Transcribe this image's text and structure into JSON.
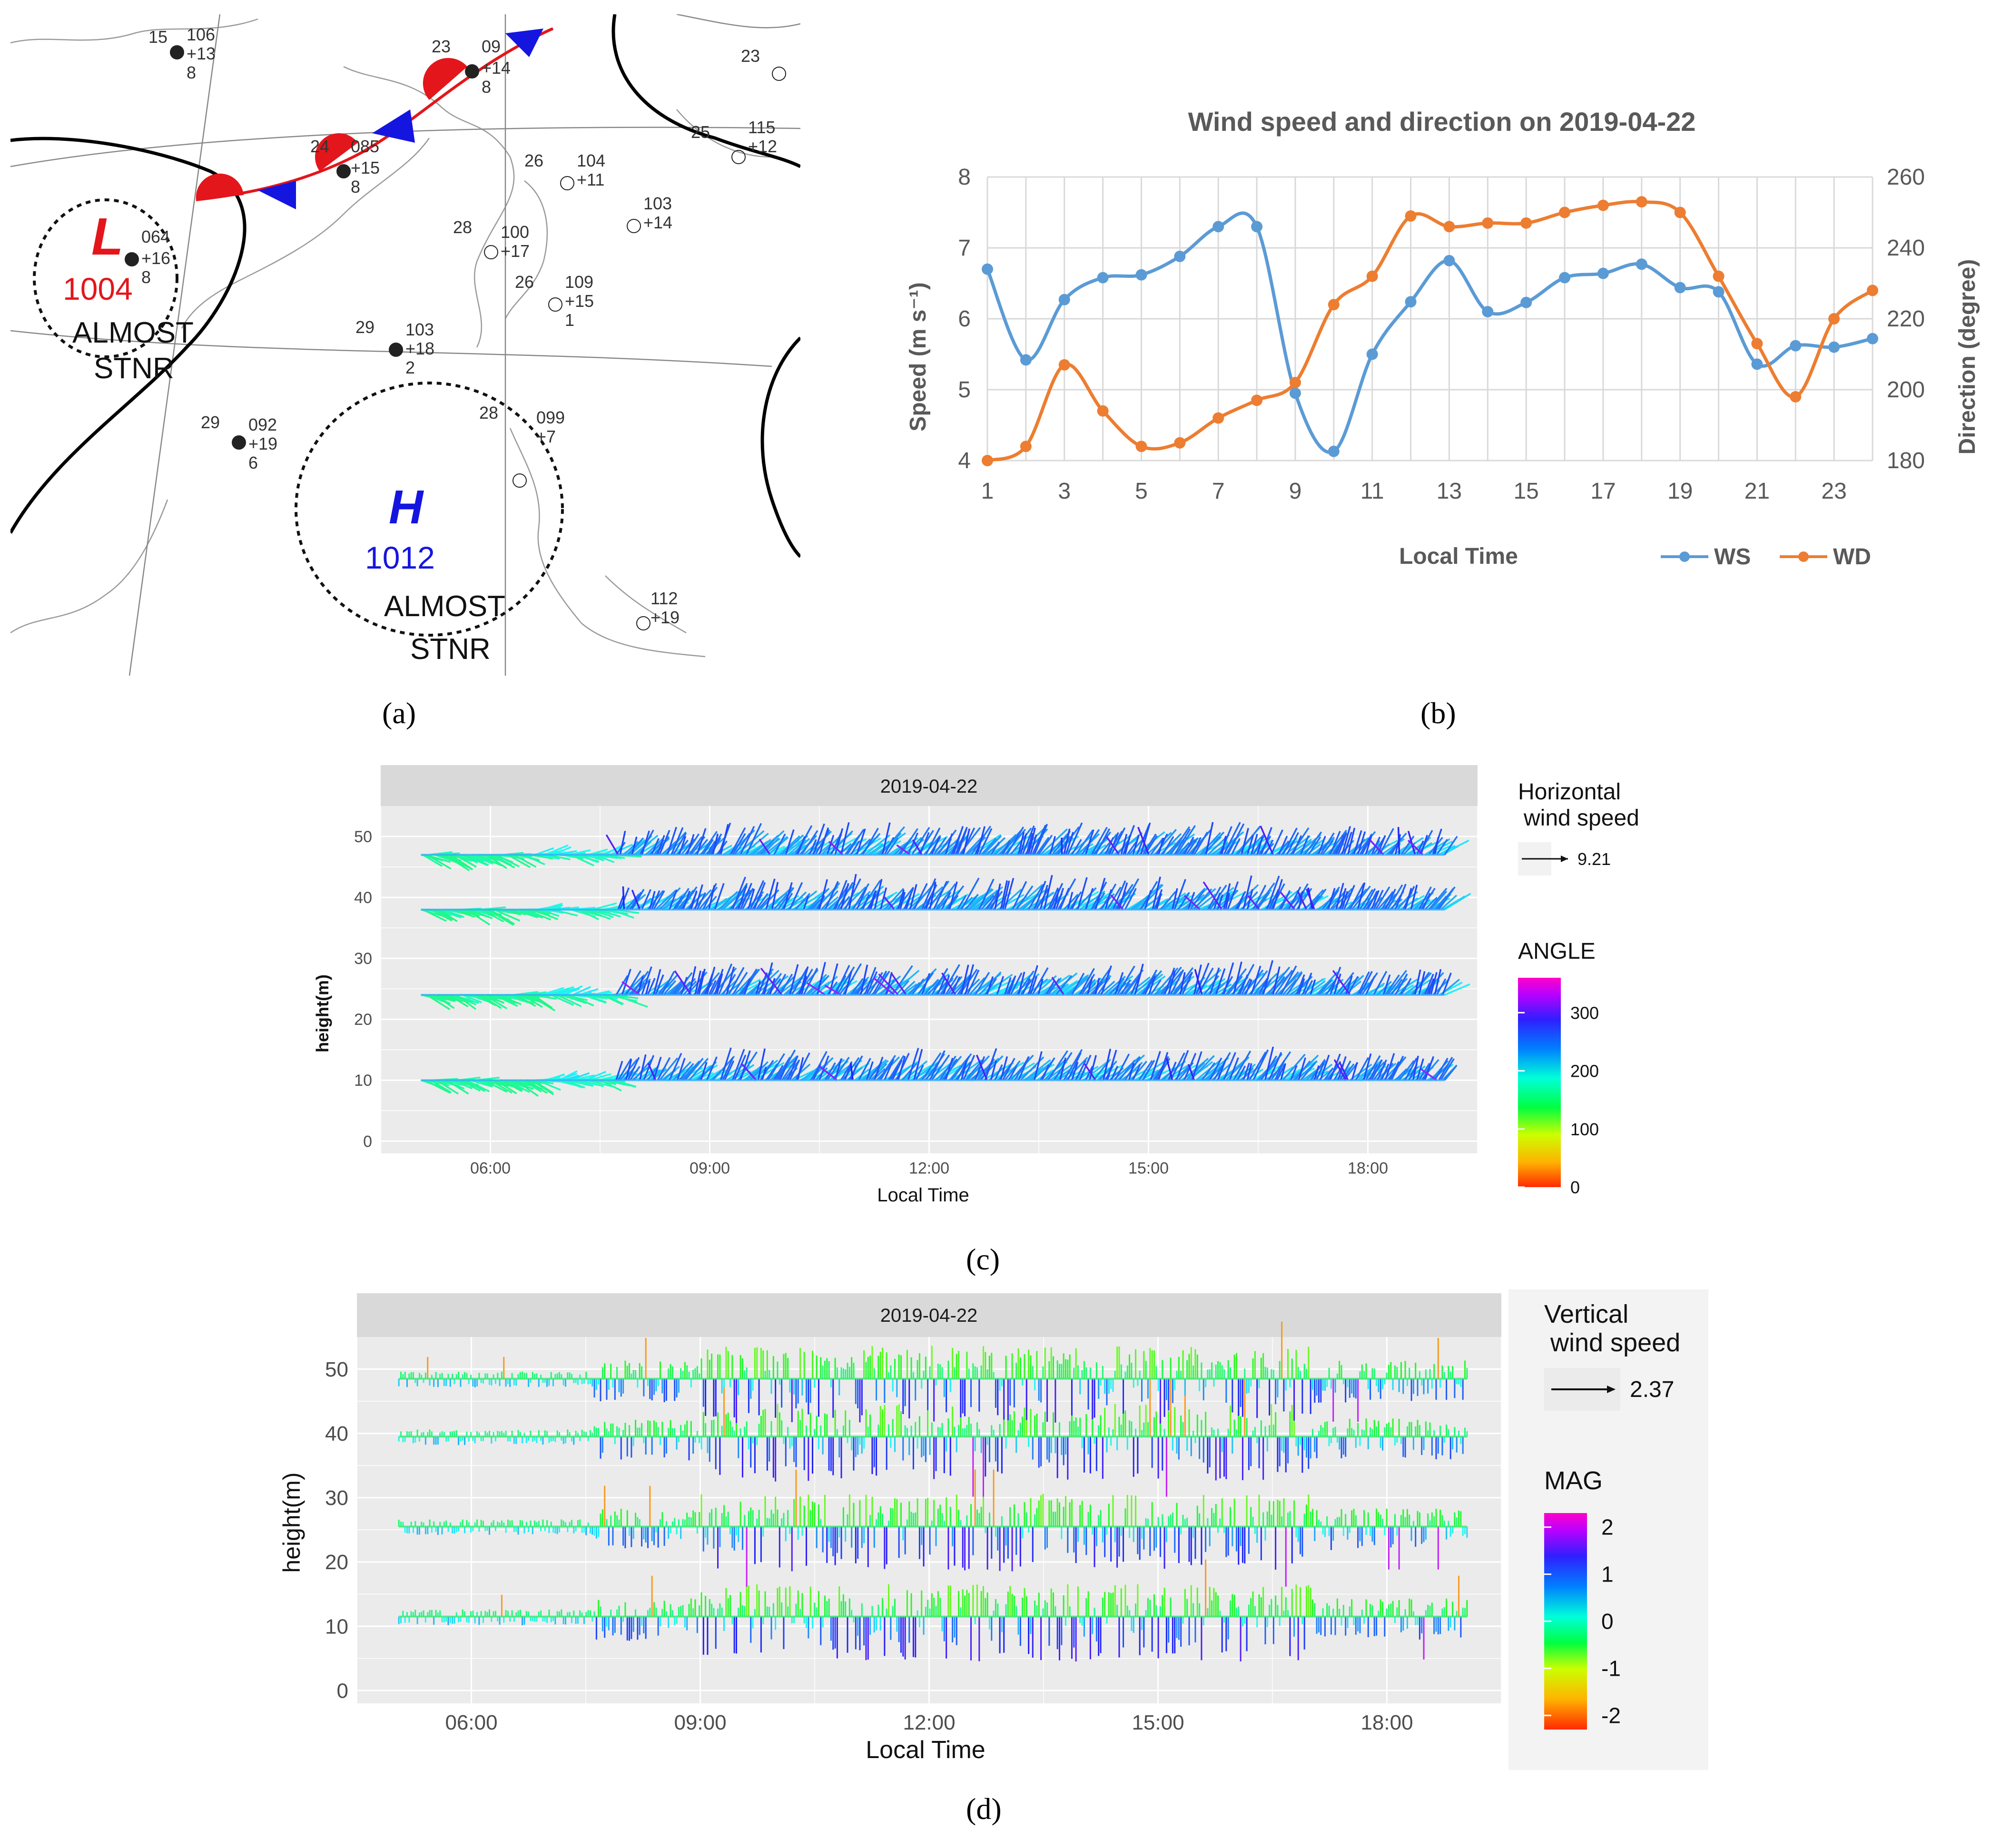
{
  "labels": {
    "a": "(a)",
    "b": "(b)",
    "c": "(c)",
    "d": "(d)"
  },
  "map": {
    "low": {
      "letter": "L",
      "pressure": "1004",
      "status": [
        "ALMOST",
        "STNR"
      ],
      "color": "#e3161b"
    },
    "high": {
      "letter": "H",
      "pressure": "1012",
      "status": [
        "ALMOST",
        "STNR"
      ],
      "color": "#1515e0"
    },
    "stations": [
      {
        "t": "15",
        "p": "106",
        "d": "+13",
        "n": "8"
      },
      {
        "t": "23",
        "p": "09",
        "d": "+14",
        "n": "8"
      },
      {
        "t": "24",
        "p": "085",
        "d": "+15",
        "n": "8"
      },
      {
        "t": "",
        "p": "064",
        "d": "+16",
        "n": "8"
      },
      {
        "t": "26",
        "p": "104",
        "d": "+11",
        "n": ""
      },
      {
        "t": "28",
        "p": "100",
        "d": "+17",
        "n": ""
      },
      {
        "t": "",
        "p": "103",
        "d": "+14",
        "n": ""
      },
      {
        "t": "25",
        "p": "115",
        "d": "+12",
        "n": ""
      },
      {
        "t": "23",
        "p": "",
        "d": "",
        "n": ""
      },
      {
        "t": "26",
        "p": "109",
        "d": "+15",
        "n": "1"
      },
      {
        "t": "29",
        "p": "103",
        "d": "+18",
        "n": "2"
      },
      {
        "t": "29",
        "p": "092",
        "d": "+19",
        "n": "6"
      },
      {
        "t": "28",
        "p": "099",
        "d": "+7",
        "n": ""
      },
      {
        "t": "",
        "p": "112",
        "d": "+19",
        "n": ""
      }
    ]
  },
  "chart_data": [
    {
      "type": "line",
      "title": "Wind speed and direction on 2019-04-22",
      "xlabel": "Local Time",
      "ylabel": "Speed (m s⁻¹)",
      "ylabel2": "Direction (degree)",
      "x": [
        1,
        2,
        3,
        4,
        5,
        6,
        7,
        8,
        9,
        10,
        11,
        12,
        13,
        14,
        15,
        16,
        17,
        18,
        19,
        20,
        21,
        22,
        23,
        24
      ],
      "xticks": [
        "1",
        "3",
        "5",
        "7",
        "9",
        "11",
        "13",
        "15",
        "17",
        "19",
        "21",
        "23"
      ],
      "ylim": [
        4,
        8
      ],
      "yticks": [
        "4",
        "5",
        "6",
        "7",
        "8"
      ],
      "y2lim": [
        180,
        260
      ],
      "y2ticks": [
        "180",
        "200",
        "220",
        "240",
        "260"
      ],
      "series": [
        {
          "name": "WS",
          "axis": "left",
          "color": "#5b9bd5",
          "values": [
            6.7,
            5.42,
            6.27,
            6.58,
            6.62,
            6.88,
            7.3,
            7.3,
            4.95,
            4.13,
            5.5,
            6.24,
            6.82,
            6.1,
            6.23,
            6.58,
            6.64,
            6.77,
            6.44,
            6.38,
            5.36,
            5.62,
            5.6,
            5.72
          ]
        },
        {
          "name": "WD",
          "axis": "right",
          "color": "#ed7d31",
          "values": [
            180,
            184,
            207,
            194,
            184,
            185,
            192,
            197,
            202,
            224,
            232,
            249,
            246,
            247,
            247,
            250,
            252,
            253,
            250,
            232,
            213,
            198,
            220,
            228
          ]
        }
      ],
      "legend": [
        "WS",
        "WD"
      ]
    },
    {
      "type": "quiver",
      "title": "2019-04-22",
      "xlabel": "Local Time",
      "ylabel": "height(m)",
      "xticks": [
        "06:00",
        "09:00",
        "12:00",
        "15:00",
        "18:00"
      ],
      "xlim_hours": [
        4.5,
        19.5
      ],
      "time_range_hours": [
        5.05,
        19.05
      ],
      "yticks": [
        "0",
        "10",
        "20",
        "30",
        "40",
        "50"
      ],
      "ylim": [
        -2,
        55
      ],
      "heights": [
        10,
        24,
        38,
        47
      ],
      "legend_title": "Horizontal wind speed",
      "legend_title_lines": [
        "Horizontal",
        "wind speed"
      ],
      "reference_value": "9.21",
      "color_title": "ANGLE",
      "color_ticks": [
        "0",
        "100",
        "200",
        "300"
      ],
      "color_range": [
        0,
        360
      ]
    },
    {
      "type": "quiver",
      "title": "2019-04-22",
      "xlabel": "Local Time",
      "ylabel": "height(m)",
      "xticks": [
        "06:00",
        "09:00",
        "12:00",
        "15:00",
        "18:00"
      ],
      "xlim_hours": [
        4.5,
        19.5
      ],
      "time_range_hours": [
        5.05,
        19.05
      ],
      "yticks": [
        "0",
        "10",
        "20",
        "30",
        "40",
        "50"
      ],
      "ylim": [
        -2,
        55
      ],
      "heights": [
        11.5,
        25.5,
        39.5,
        48.5
      ],
      "legend_title": "Vertical wind speed",
      "legend_title_lines": [
        "Vertical",
        "wind speed"
      ],
      "reference_value": "2.37",
      "color_title": "MAG",
      "color_ticks": [
        "-2",
        "-1",
        "0",
        "1",
        "2"
      ],
      "color_range": [
        -2.3,
        2.3
      ]
    }
  ]
}
